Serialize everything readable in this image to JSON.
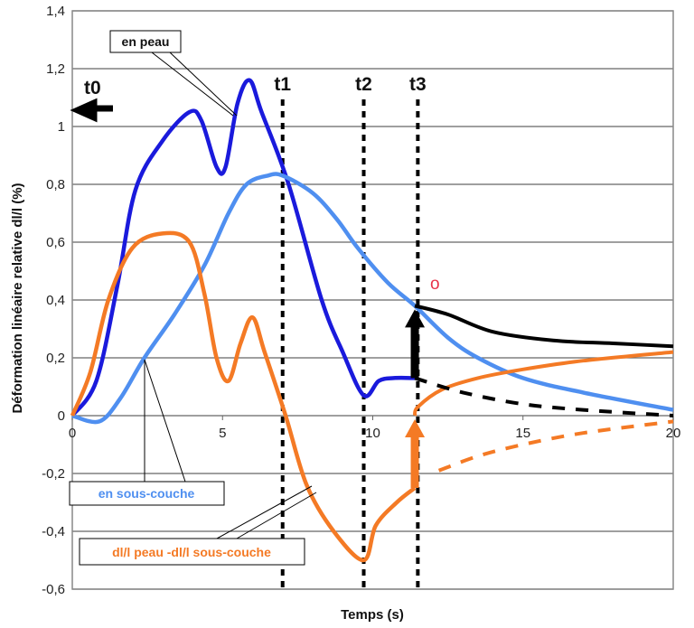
{
  "chart_data": {
    "type": "line",
    "xlabel": "Temps (s)",
    "ylabel": "Déformation linéaire relative dl/l (%)",
    "xlim": [
      0,
      20
    ],
    "ylim": [
      -0.6,
      1.4
    ],
    "xticks": [
      0,
      5,
      10,
      15,
      20
    ],
    "yticks": [
      -0.6,
      -0.4,
      -0.2,
      0,
      0.2,
      0.4,
      0.6,
      0.8,
      1,
      1.2,
      1.4
    ],
    "ytick_labels": [
      "-0,6",
      "-0,4",
      "-0,2",
      "0",
      "0,2",
      "0,4",
      "0,6",
      "0,8",
      "1",
      "1,2",
      "1,4"
    ],
    "grid": "horizontal",
    "series": [
      {
        "name": "en peau",
        "color": "#1a1adc",
        "dash": false,
        "x": [
          0,
          0.8,
          1.5,
          2.1,
          3,
          3.9,
          4.3,
          4.8,
          5.1,
          5.5,
          5.9,
          6.3,
          7.2,
          8.3,
          9,
          9.7,
          10.2,
          10.7,
          11.4
        ],
        "y": [
          0,
          0.12,
          0.45,
          0.78,
          0.95,
          1.05,
          1.02,
          0.86,
          0.86,
          1.08,
          1.16,
          1.05,
          0.8,
          0.4,
          0.22,
          0.07,
          0.12,
          0.13,
          0.13
        ]
      },
      {
        "name": "en sous-couche",
        "color": "#4f8ff0",
        "dash": false,
        "x": [
          0,
          0.9,
          1.6,
          2.4,
          3.4,
          4.4,
          5.2,
          5.8,
          6.5,
          7,
          8,
          8.8,
          9.5,
          10.5,
          11.4,
          12.5,
          13.5,
          15,
          17,
          20
        ],
        "y": [
          0,
          -0.02,
          0.06,
          0.2,
          0.35,
          0.52,
          0.7,
          0.8,
          0.83,
          0.83,
          0.77,
          0.68,
          0.58,
          0.46,
          0.38,
          0.27,
          0.2,
          0.13,
          0.08,
          0.02
        ]
      },
      {
        "name": "dl/l peau -dl/l sous-couche",
        "color": "#f47a25",
        "dash": false,
        "x": [
          0,
          0.6,
          1.2,
          2,
          3,
          3.9,
          4.4,
          4.8,
          5.2,
          5.6,
          6,
          6.4,
          7.1,
          7.8,
          8.7,
          9.7,
          10.1,
          10.8,
          11.4
        ],
        "y": [
          0,
          0.15,
          0.4,
          0.58,
          0.63,
          0.6,
          0.42,
          0.2,
          0.12,
          0.25,
          0.34,
          0.22,
          0,
          -0.24,
          -0.4,
          -0.5,
          -0.38,
          -0.3,
          -0.25
        ]
      },
      {
        "name": "orange recovery",
        "color": "#f47a25",
        "dash": false,
        "x": [
          11.4,
          11.5,
          12.3,
          13.5,
          15,
          17,
          20
        ],
        "y": [
          0,
          0.03,
          0.09,
          0.13,
          0.16,
          0.19,
          0.22
        ]
      },
      {
        "name": "orange dashed extrapolation",
        "color": "#f47a25",
        "dash": true,
        "x": [
          12.2,
          13.5,
          15,
          17,
          20
        ],
        "y": [
          -0.19,
          -0.14,
          -0.1,
          -0.06,
          -0.02
        ]
      },
      {
        "name": "black recovery",
        "color": "#000000",
        "dash": false,
        "x": [
          11.4,
          12.5,
          14,
          16,
          18,
          20
        ],
        "y": [
          0.38,
          0.35,
          0.29,
          0.26,
          0.25,
          0.24
        ]
      },
      {
        "name": "black dashed extrapolation",
        "color": "#000000",
        "dash": true,
        "x": [
          11.4,
          13,
          15,
          17,
          20
        ],
        "y": [
          0.13,
          0.08,
          0.04,
          0.02,
          0
        ]
      }
    ],
    "vlines": [
      {
        "label": "t1",
        "x": 7.0
      },
      {
        "label": "t2",
        "x": 9.7
      },
      {
        "label": "t3",
        "x": 11.5
      }
    ],
    "arrows": [
      {
        "color": "#000000",
        "x": 11.4,
        "from": 0.13,
        "to": 0.38
      },
      {
        "color": "#f47a25",
        "x": 11.4,
        "from": -0.25,
        "to": 0
      }
    ],
    "annotations": {
      "t0": "t0",
      "o": "o",
      "callout_peau": "en peau",
      "callout_sous": "en sous-couche",
      "callout_diff": "dl/l peau -dl/l sous-couche"
    }
  }
}
